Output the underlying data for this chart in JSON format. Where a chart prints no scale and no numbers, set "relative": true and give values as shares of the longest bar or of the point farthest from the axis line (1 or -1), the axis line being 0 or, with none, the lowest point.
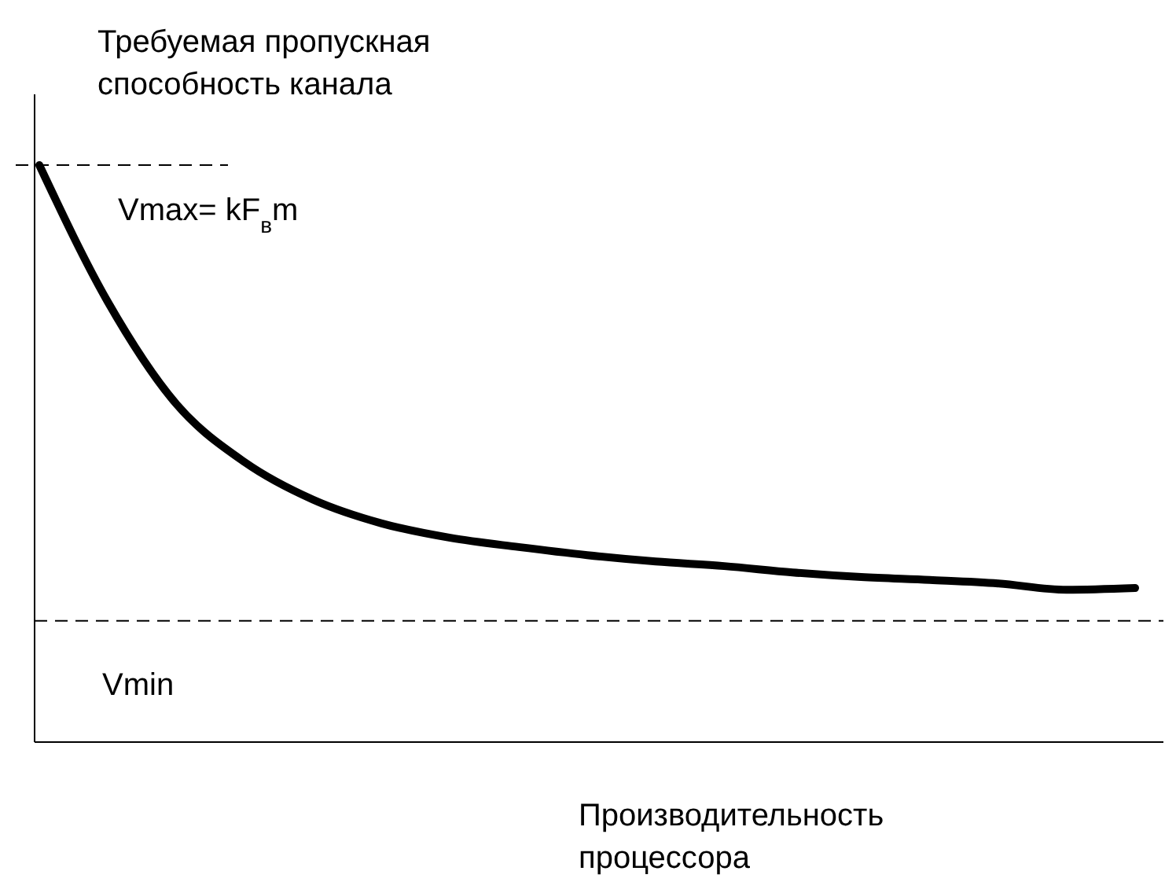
{
  "chart_data": {
    "type": "line",
    "relative": true,
    "xlabel": "Производительность процессора",
    "ylabel": "Требуемая пропускная способность канала",
    "categories": [
      null,
      null,
      null,
      null,
      null,
      null,
      null,
      null,
      null,
      null,
      null,
      null,
      null,
      null,
      null,
      null,
      null
    ],
    "series": [
      {
        "color": "#000000",
        "values": [
          1,
          0.763,
          0.586,
          0.485,
          0.42,
          0.379,
          0.354,
          0.338,
          0.324,
          0.313,
          0.305,
          0.294,
          0.286,
          0.281,
          0.275,
          0.264,
          0.267
        ]
      }
    ],
    "ref_lines": [
      {
        "axis": "y",
        "value": 1,
        "label": "Vmax= kF$_{в}$m",
        "line_style": "dashed",
        "color": "#000000"
      },
      {
        "axis": "y",
        "value": 0.21,
        "label": "Vmin",
        "line_style": "dashed",
        "color": "#000000"
      }
    ],
    "marker": "none",
    "line_style": "solid"
  }
}
